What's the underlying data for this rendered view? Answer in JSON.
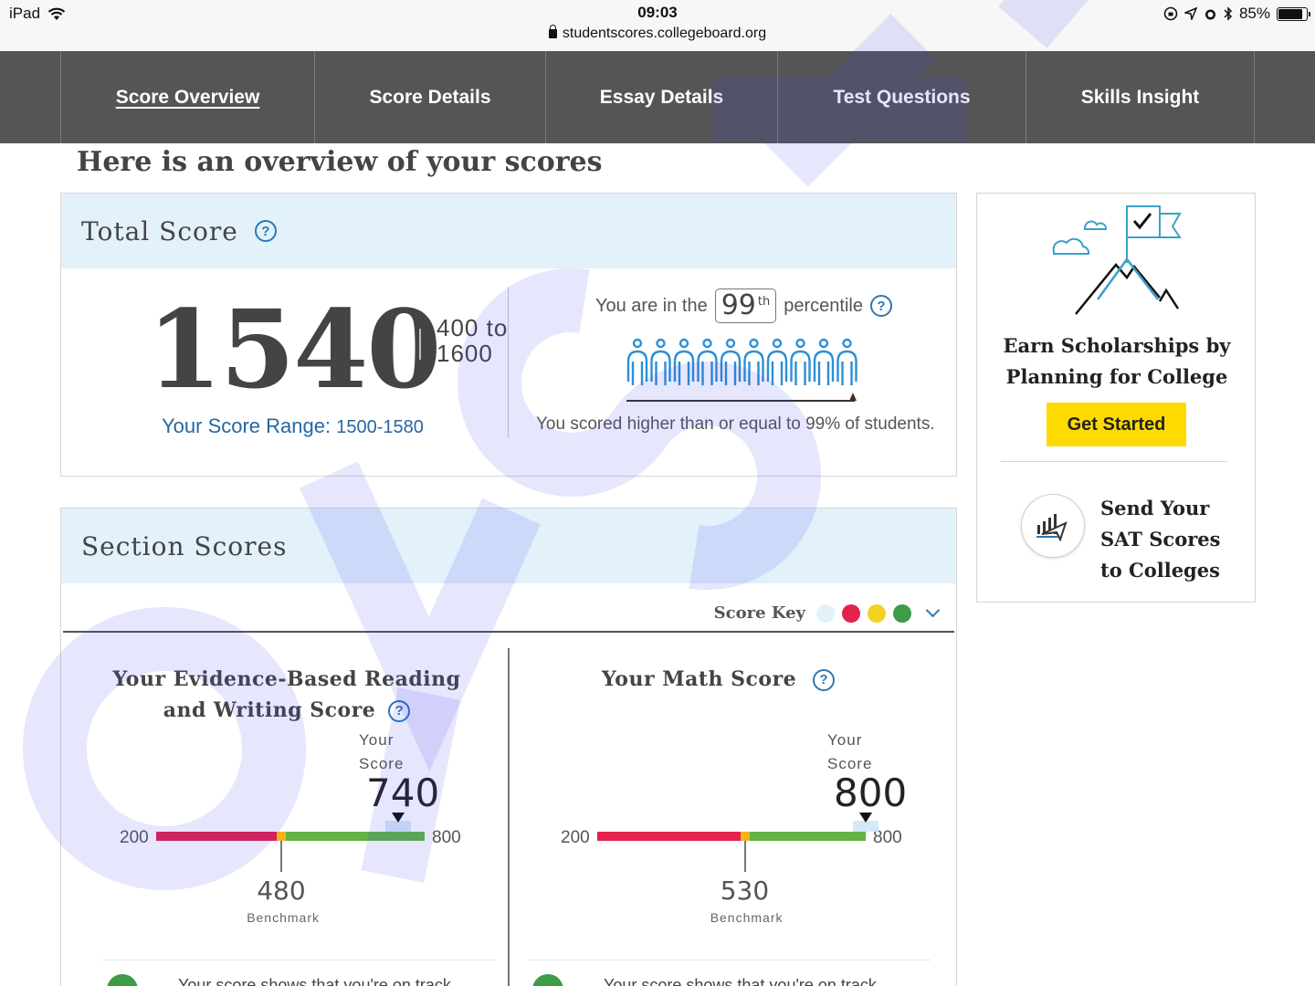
{
  "status_bar": {
    "device": "iPad",
    "time": "09:03",
    "url": "studentscores.collegeboard.org",
    "battery": "85%",
    "battery_level": 0.85
  },
  "nav": {
    "items": [
      {
        "label": "Score Overview",
        "active": true
      },
      {
        "label": "Score Details"
      },
      {
        "label": "Essay Details"
      },
      {
        "label": "Test Questions"
      },
      {
        "label": "Skills Insight"
      }
    ]
  },
  "page": {
    "title": "Here is an overview of your scores"
  },
  "total_score": {
    "heading": "Total Score",
    "score": "1540",
    "range_line1": "400 to",
    "range_line2": "1600",
    "score_range_label": "Your Score Range:",
    "score_range_value": "1500-1580",
    "percentile_prefix": "You are in the",
    "percentile_value": "99",
    "percentile_suffix_sup": "th",
    "percentile_label": "percentile",
    "percentile_sentence": "You scored higher than or equal to 99% of students."
  },
  "section_scores": {
    "heading": "Section Scores",
    "score_key_label": "Score Key",
    "score_key_colors": [
      "#e3f1fb",
      "#e4224b",
      "#f4d21f",
      "#3e9b46"
    ],
    "ebrw": {
      "title_line1": "Your Evidence-Based Reading",
      "title_line2": "and Writing Score",
      "your_label_1": "Your",
      "your_label_2": "Score",
      "score": "740",
      "score_value": 740,
      "min": "200",
      "max": "800",
      "min_value": 200,
      "max_value": 800,
      "benchmark": "480",
      "benchmark_value": 480,
      "benchmark_label": "Benchmark",
      "track_text": "Your score shows that you're on track"
    },
    "math": {
      "title": "Your Math Score",
      "your_label_1": "Your",
      "your_label_2": "Score",
      "score": "800",
      "score_value": 800,
      "min": "200",
      "max": "800",
      "min_value": 200,
      "max_value": 800,
      "benchmark": "530",
      "benchmark_value": 530,
      "benchmark_label": "Benchmark",
      "track_text": "Your score shows that you're on track"
    }
  },
  "sidebar": {
    "promo_line1": "Earn Scholarships by",
    "promo_line2": "Planning for College",
    "cta": "Get Started",
    "send_line1": "Send Your",
    "send_line2": "SAT Scores",
    "send_line3": "to Colleges"
  },
  "colors": {
    "nav_bg": "#555555",
    "card_head_bg": "#e3f1fb",
    "accent_blue": "#2c78b5",
    "cta_yellow": "#fedb00",
    "bar_red": "#e4224b",
    "bar_yellow": "#f4b21f",
    "bar_green": "#63b346"
  }
}
